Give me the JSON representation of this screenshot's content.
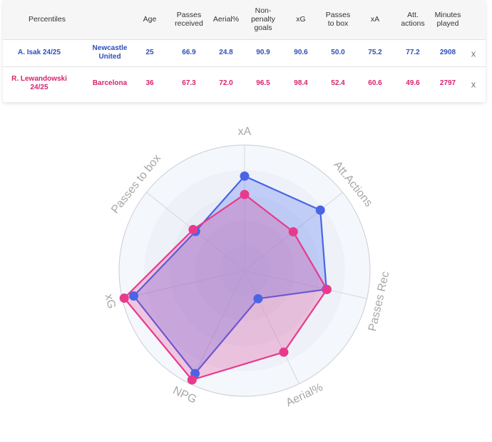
{
  "table": {
    "headers": [
      "Percentiles",
      "Age",
      "Passes\nreceived",
      "Aerial%",
      "Non-\npenalty\ngoals",
      "xG",
      "Passes\nto box",
      "xA",
      "Att.\nactions",
      "Minutes\nplayed"
    ],
    "rows": [
      {
        "player": "A. Isak 24/25",
        "team": "Newcastle\nUnited",
        "values": [
          "25",
          "66.9",
          "24.8",
          "90.9",
          "90.6",
          "50.0",
          "75.2",
          "77.2",
          "2908"
        ],
        "remove": "x",
        "color": "#2f4fb8"
      },
      {
        "player": "R. Lewandowski\n24/25",
        "team": "Barcelona",
        "values": [
          "36",
          "67.3",
          "72.0",
          "96.5",
          "98.4",
          "52.4",
          "60.6",
          "49.6",
          "2797"
        ],
        "remove": "x",
        "color": "#d6246e"
      }
    ]
  },
  "chart_data": {
    "type": "radar",
    "axes": [
      "xA",
      "Att.Actions",
      "Passes Rec",
      "Aerial%",
      "NPG",
      "xG",
      "Passes to box"
    ],
    "rlim": [
      0,
      100
    ],
    "series": [
      {
        "name": "A. Isak 24/25",
        "values": [
          75.2,
          77.2,
          66.9,
          24.8,
          90.9,
          90.6,
          50.0
        ],
        "color": "#4a64e6"
      },
      {
        "name": "R. Lewandowski 24/25",
        "values": [
          60.6,
          49.6,
          67.3,
          72.0,
          96.5,
          98.4,
          52.4
        ],
        "color": "#e83a8c"
      }
    ]
  }
}
